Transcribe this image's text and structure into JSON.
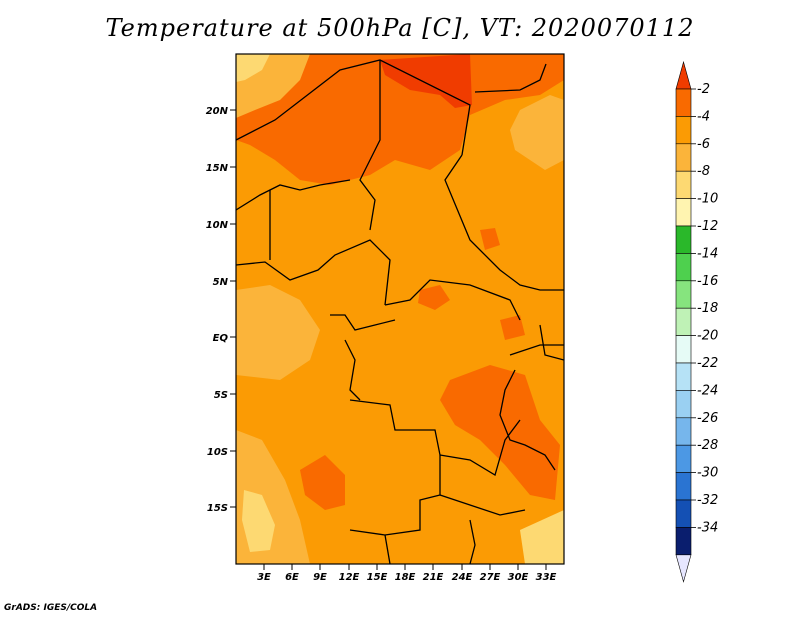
{
  "title": "Temperature at 500hPa [C], VT: 2020070112",
  "credit": "GrADS: IGES/COLA",
  "map": {
    "lat_labels": [
      "20N",
      "15N",
      "10N",
      "5N",
      "EQ",
      "5S",
      "10S",
      "15S"
    ],
    "lon_labels": [
      "3E",
      "6E",
      "9E",
      "12E",
      "15E",
      "18E",
      "21E",
      "24E",
      "27E",
      "30E",
      "33E"
    ]
  },
  "colorbar": {
    "levels": [
      "-2",
      "-4",
      "-6",
      "-8",
      "-10",
      "-12",
      "-14",
      "-16",
      "-18",
      "-20",
      "-22",
      "-24",
      "-26",
      "-28",
      "-30",
      "-32",
      "-34"
    ],
    "colors": [
      "#f03c00",
      "#f96a00",
      "#fb9b04",
      "#fbb43a",
      "#fdd972",
      "#fff4b0",
      "#2ab82a",
      "#4ed04e",
      "#86e47e",
      "#bff2b6",
      "#e6fbf6",
      "#b6e2f6",
      "#9ad0f2",
      "#76b6ec",
      "#4c98e4",
      "#2a74d2",
      "#1450b4",
      "#0a1e6e",
      "#e6e6ff"
    ]
  }
}
